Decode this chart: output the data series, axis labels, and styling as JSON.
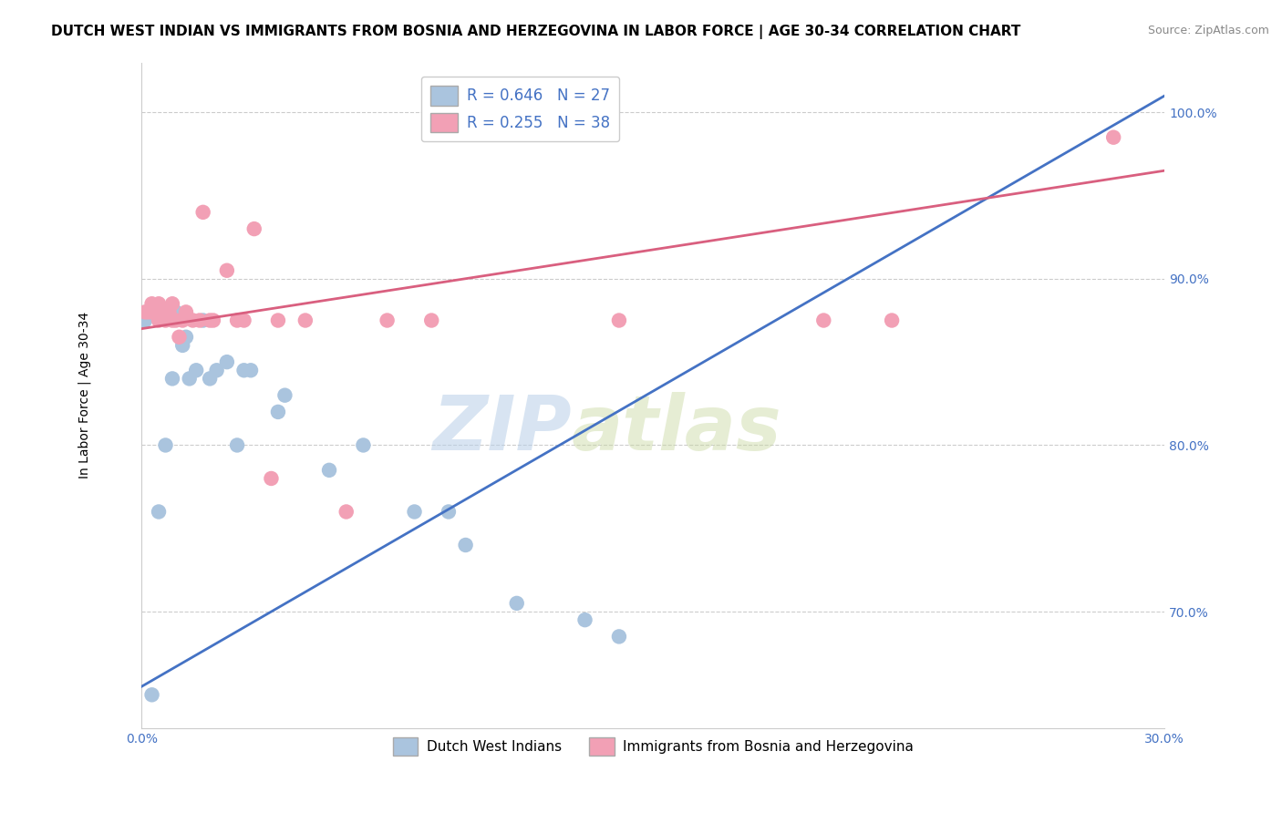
{
  "title": "DUTCH WEST INDIAN VS IMMIGRANTS FROM BOSNIA AND HERZEGOVINA IN LABOR FORCE | AGE 30-34 CORRELATION CHART",
  "source": "Source: ZipAtlas.com",
  "ylabel": "In Labor Force | Age 30-34",
  "xlim": [
    0.0,
    0.3
  ],
  "ylim": [
    0.63,
    1.03
  ],
  "yticks": [
    0.7,
    0.8,
    0.9,
    1.0
  ],
  "ytick_labels": [
    "70.0%",
    "80.0%",
    "90.0%",
    "100.0%"
  ],
  "xticks": [
    0.0,
    0.05,
    0.1,
    0.15,
    0.2,
    0.25,
    0.3
  ],
  "xtick_labels": [
    "0.0%",
    "",
    "",
    "",
    "",
    "",
    "30.0%"
  ],
  "blue_R": "R = 0.646",
  "blue_N": "N = 27",
  "pink_R": "R = 0.255",
  "pink_N": "N = 38",
  "blue_color": "#aac4de",
  "pink_color": "#f2a0b5",
  "blue_line_color": "#4472c4",
  "pink_line_color": "#d95f7f",
  "legend_label_blue": "Dutch West Indians",
  "legend_label_pink": "Immigrants from Bosnia and Herzegovina",
  "watermark_zip": "ZIP",
  "watermark_atlas": "atlas",
  "blue_scatter_x": [
    0.001,
    0.003,
    0.005,
    0.007,
    0.009,
    0.01,
    0.012,
    0.013,
    0.014,
    0.016,
    0.018,
    0.02,
    0.022,
    0.025,
    0.028,
    0.03,
    0.032,
    0.04,
    0.042,
    0.055,
    0.065,
    0.08,
    0.09,
    0.095,
    0.11,
    0.13,
    0.14
  ],
  "blue_scatter_y": [
    0.875,
    0.65,
    0.76,
    0.8,
    0.84,
    0.88,
    0.86,
    0.865,
    0.84,
    0.845,
    0.875,
    0.84,
    0.845,
    0.85,
    0.8,
    0.845,
    0.845,
    0.82,
    0.83,
    0.785,
    0.8,
    0.76,
    0.76,
    0.74,
    0.705,
    0.695,
    0.685
  ],
  "pink_scatter_x": [
    0.001,
    0.002,
    0.003,
    0.003,
    0.004,
    0.005,
    0.005,
    0.006,
    0.006,
    0.007,
    0.007,
    0.008,
    0.008,
    0.009,
    0.009,
    0.01,
    0.011,
    0.012,
    0.013,
    0.015,
    0.017,
    0.018,
    0.02,
    0.021,
    0.025,
    0.028,
    0.03,
    0.033,
    0.038,
    0.04,
    0.048,
    0.06,
    0.072,
    0.085,
    0.14,
    0.2,
    0.22,
    0.285
  ],
  "pink_scatter_y": [
    0.88,
    0.88,
    0.885,
    0.88,
    0.88,
    0.885,
    0.875,
    0.88,
    0.88,
    0.88,
    0.875,
    0.88,
    0.88,
    0.875,
    0.885,
    0.875,
    0.865,
    0.875,
    0.88,
    0.875,
    0.875,
    0.94,
    0.875,
    0.875,
    0.905,
    0.875,
    0.875,
    0.93,
    0.78,
    0.875,
    0.875,
    0.76,
    0.875,
    0.875,
    0.875,
    0.875,
    0.875,
    0.985
  ],
  "title_fontsize": 11,
  "axis_fontsize": 10,
  "tick_fontsize": 10,
  "legend_fontsize": 12
}
